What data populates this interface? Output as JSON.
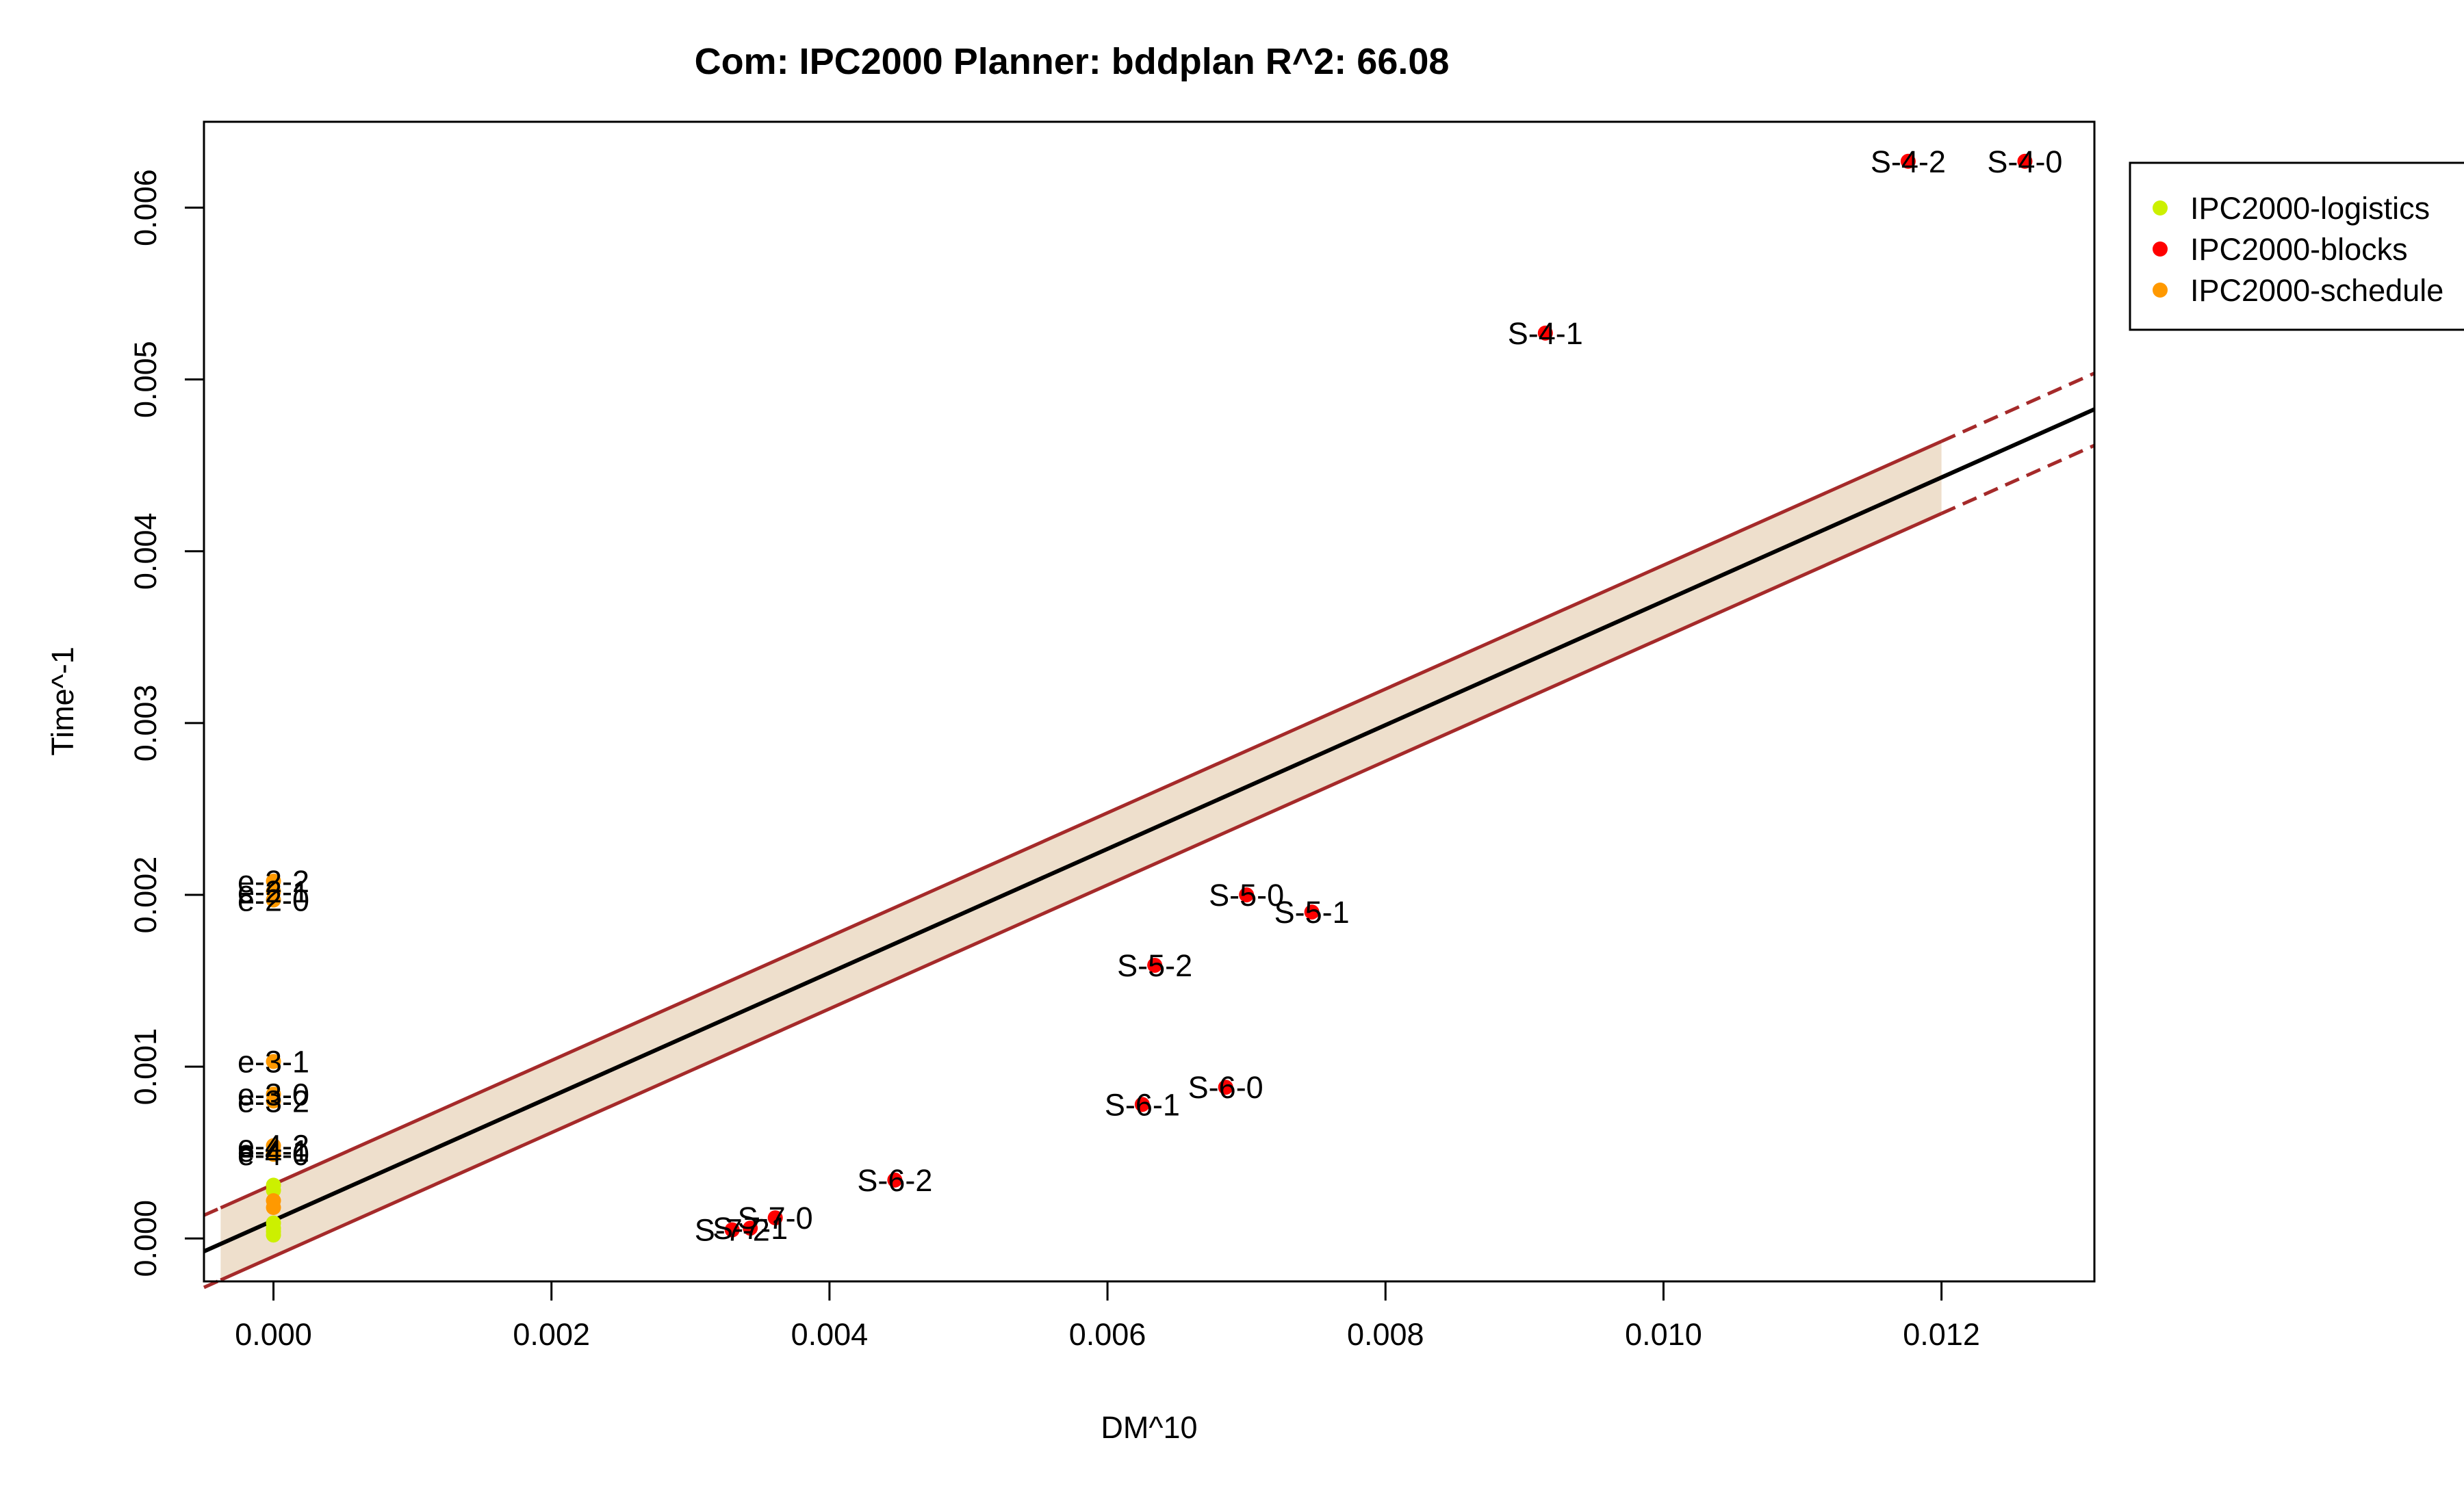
{
  "chart_data": {
    "type": "scatter",
    "title": "Com: IPC2000 Planner: bddplan R^2: 66.08",
    "xlabel": "DM^10",
    "ylabel": "Time^-1",
    "xlim": [
      -0.0005,
      0.0131
    ],
    "ylim": [
      -0.00025,
      0.0065
    ],
    "x_ticks": [
      "0.000",
      "0.002",
      "0.004",
      "0.006",
      "0.008",
      "0.010",
      "0.012"
    ],
    "x_tick_values": [
      0,
      0.002,
      0.004,
      0.006,
      0.008,
      0.01,
      0.012
    ],
    "y_ticks": [
      "0.000",
      "0.001",
      "0.002",
      "0.003",
      "0.004",
      "0.005",
      "0.006"
    ],
    "y_tick_values": [
      0,
      0.001,
      0.002,
      0.003,
      0.004,
      0.005,
      0.006
    ],
    "grid": false,
    "legend_position": "top-right",
    "colors": {
      "logistics": "#ccf000",
      "blocks": "#ff0000",
      "schedule": "#ff9900",
      "band_fill": "#eedfcc",
      "ci_line": "#a52a2a",
      "fit_line": "#000000"
    },
    "series": [
      {
        "name": "IPC2000-logistics",
        "color": "#ccf000",
        "points": [
          {
            "x": 0.0,
            "y": 2e-05
          },
          {
            "x": 0.0,
            "y": 4e-05
          },
          {
            "x": 0.0,
            "y": 6e-05
          },
          {
            "x": 0.0,
            "y": 9e-05
          },
          {
            "x": 0.0,
            "y": 0.00028
          },
          {
            "x": 0.0,
            "y": 0.00031
          }
        ]
      },
      {
        "name": "IPC2000-blocks",
        "color": "#ff0000",
        "points": [
          {
            "x": 0.01176,
            "y": 0.00627,
            "label": "S-4-2"
          },
          {
            "x": 0.0126,
            "y": 0.00627,
            "label": "S-4-0"
          },
          {
            "x": 0.00915,
            "y": 0.00527,
            "label": "S-4-1"
          },
          {
            "x": 0.007,
            "y": 0.002,
            "label": "S-5-0"
          },
          {
            "x": 0.00747,
            "y": 0.0019,
            "label": "S-5-1"
          },
          {
            "x": 0.00634,
            "y": 0.00159,
            "label": "S-5-2"
          },
          {
            "x": 0.00685,
            "y": 0.00088,
            "label": "S-6-0"
          },
          {
            "x": 0.00625,
            "y": 0.00078,
            "label": "S-6-1"
          },
          {
            "x": 0.00447,
            "y": 0.00034,
            "label": "S-6-2"
          },
          {
            "x": 0.00361,
            "y": 0.00012,
            "label": "S-7-0"
          },
          {
            "x": 0.00343,
            "y": 6e-05,
            "label": "S-7-1"
          },
          {
            "x": 0.0033,
            "y": 5e-05,
            "label": "S-7-2"
          }
        ]
      },
      {
        "name": "IPC2000-schedule",
        "color": "#ff9900",
        "points": [
          {
            "x": 0.0,
            "y": 0.00208,
            "label": "e-2-2"
          },
          {
            "x": 0.0,
            "y": 0.00202,
            "label": "e-2-1"
          },
          {
            "x": 0.0,
            "y": 0.00197,
            "label": "e-2-0"
          },
          {
            "x": 0.0,
            "y": 0.00103,
            "label": "e-3-1"
          },
          {
            "x": 0.0,
            "y": 0.00084,
            "label": "e-3-0"
          },
          {
            "x": 0.0,
            "y": 0.0008,
            "label": "e-3-2"
          },
          {
            "x": 0.0,
            "y": 0.00054,
            "label": "e-4-2"
          },
          {
            "x": 0.0,
            "y": 0.00051,
            "label": "e-4-1"
          },
          {
            "x": 0.0,
            "y": 0.00049,
            "label": "e-4-0"
          },
          {
            "x": 0.0,
            "y": 0.00022,
            "label": ""
          },
          {
            "x": 0.0,
            "y": 0.00018,
            "label": ""
          }
        ]
      }
    ],
    "fit": {
      "intercept": 0.000105,
      "slope": 0.3604,
      "ci_halfwidth": 0.00021
    }
  }
}
